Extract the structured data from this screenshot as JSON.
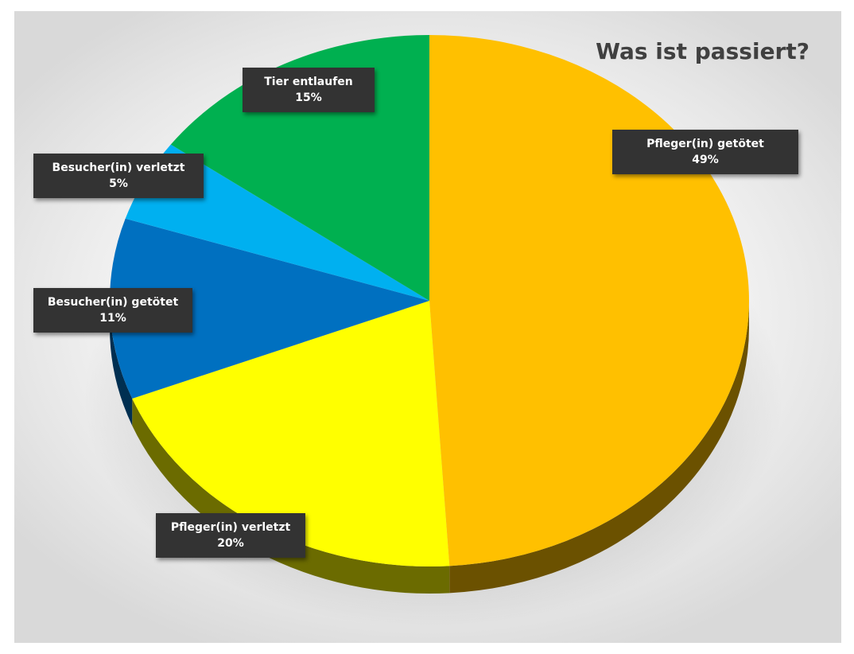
{
  "chart_data": {
    "type": "pie",
    "title": "Was ist passiert?",
    "categories": [
      "Pfleger(in) getötet",
      "Pfleger(in) verletzt",
      "Besucher(in) getötet",
      "Besucher(in) verletzt",
      "Tier entlaufen"
    ],
    "values": [
      49,
      20,
      11,
      5,
      15
    ],
    "value_labels": [
      "49%",
      "20%",
      "11%",
      "5%",
      "15%"
    ],
    "colors": [
      "#FFC000",
      "#FFFF00",
      "#0070C0",
      "#00B0F0",
      "#00B050"
    ],
    "start_angle_deg": 0,
    "direction": "clockwise",
    "style": "3d",
    "legend": "none",
    "data_labels": "callout"
  }
}
